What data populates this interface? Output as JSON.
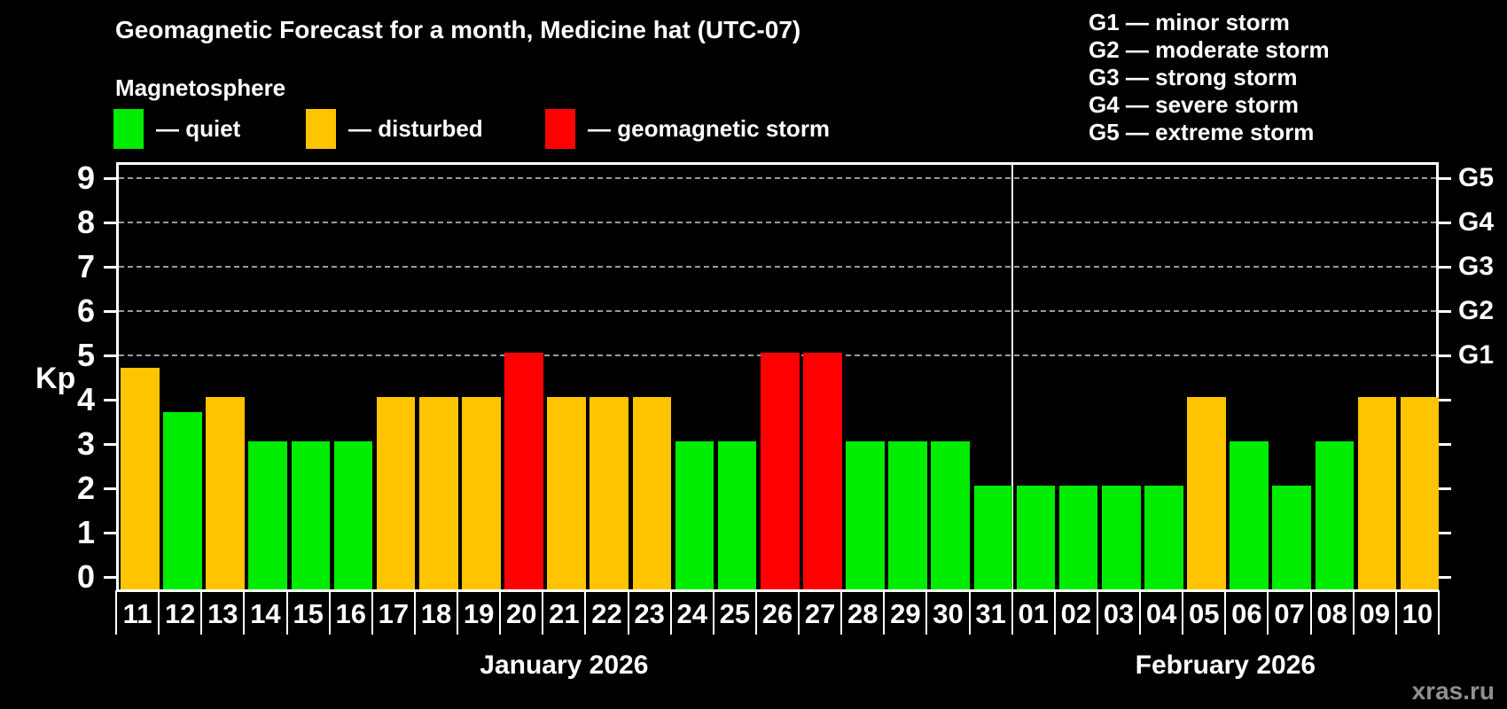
{
  "header": {
    "title": "Geomagnetic Forecast for a month, Medicine hat (UTC-07)",
    "subtitle": "Magnetosphere"
  },
  "legend": {
    "items": [
      {
        "name": "quiet",
        "label": "— quiet",
        "color": "#00ec00"
      },
      {
        "name": "disturbed",
        "label": "— disturbed",
        "color": "#ffc400"
      },
      {
        "name": "storm",
        "label": "— geomagnetic storm",
        "color": "#ff0000"
      }
    ]
  },
  "g_legend": {
    "lines": [
      "G1 — minor storm",
      "G2 — moderate storm",
      "G3 — strong storm",
      "G4 — severe storm",
      "G5 — extreme storm"
    ]
  },
  "watermark": "xras.ru",
  "chart_data": {
    "type": "bar",
    "title": "Geomagnetic Forecast for a month, Medicine hat (UTC-07)",
    "ylabel": "Kp",
    "ylim": [
      0,
      9.4
    ],
    "y_ticks": [
      0,
      1,
      2,
      3,
      4,
      5,
      6,
      7,
      8,
      9
    ],
    "gridlines_at": [
      5,
      6,
      7,
      8,
      9
    ],
    "grid": "dashed-horizontal",
    "right_axis_labels": [
      {
        "kp": 5,
        "label": "G1"
      },
      {
        "kp": 6,
        "label": "G2"
      },
      {
        "kp": 7,
        "label": "G3"
      },
      {
        "kp": 8,
        "label": "G4"
      },
      {
        "kp": 9,
        "label": "G5"
      }
    ],
    "status_colors": {
      "quiet": "#00ec00",
      "disturbed": "#ffc400",
      "storm": "#ff0000"
    },
    "bars": [
      {
        "day": "11",
        "kp": 4.67,
        "status": "disturbed"
      },
      {
        "day": "12",
        "kp": 3.67,
        "status": "quiet"
      },
      {
        "day": "13",
        "kp": 4,
        "status": "disturbed"
      },
      {
        "day": "14",
        "kp": 3,
        "status": "quiet"
      },
      {
        "day": "15",
        "kp": 3,
        "status": "quiet"
      },
      {
        "day": "16",
        "kp": 3,
        "status": "quiet"
      },
      {
        "day": "17",
        "kp": 4,
        "status": "disturbed"
      },
      {
        "day": "18",
        "kp": 4,
        "status": "disturbed"
      },
      {
        "day": "19",
        "kp": 4,
        "status": "disturbed"
      },
      {
        "day": "20",
        "kp": 5,
        "status": "storm"
      },
      {
        "day": "21",
        "kp": 4,
        "status": "disturbed"
      },
      {
        "day": "22",
        "kp": 4,
        "status": "disturbed"
      },
      {
        "day": "23",
        "kp": 4,
        "status": "disturbed"
      },
      {
        "day": "24",
        "kp": 3,
        "status": "quiet"
      },
      {
        "day": "25",
        "kp": 3,
        "status": "quiet"
      },
      {
        "day": "26",
        "kp": 5,
        "status": "storm"
      },
      {
        "day": "27",
        "kp": 5,
        "status": "storm"
      },
      {
        "day": "28",
        "kp": 3,
        "status": "quiet"
      },
      {
        "day": "29",
        "kp": 3,
        "status": "quiet"
      },
      {
        "day": "30",
        "kp": 3,
        "status": "quiet"
      },
      {
        "day": "31",
        "kp": 2,
        "status": "quiet"
      },
      {
        "day": "01",
        "kp": 2,
        "status": "quiet"
      },
      {
        "day": "02",
        "kp": 2,
        "status": "quiet"
      },
      {
        "day": "03",
        "kp": 2,
        "status": "quiet"
      },
      {
        "day": "04",
        "kp": 2,
        "status": "quiet"
      },
      {
        "day": "05",
        "kp": 4,
        "status": "disturbed"
      },
      {
        "day": "06",
        "kp": 3,
        "status": "quiet"
      },
      {
        "day": "07",
        "kp": 2,
        "status": "quiet"
      },
      {
        "day": "08",
        "kp": 3,
        "status": "quiet"
      },
      {
        "day": "09",
        "kp": 4,
        "status": "disturbed"
      },
      {
        "day": "10",
        "kp": 4,
        "status": "disturbed"
      }
    ],
    "month_groups": [
      {
        "label": "January 2026",
        "start_index": 0,
        "end_index": 20
      },
      {
        "label": "February 2026",
        "start_index": 21,
        "end_index": 30
      }
    ],
    "legend_position": "top-left"
  }
}
